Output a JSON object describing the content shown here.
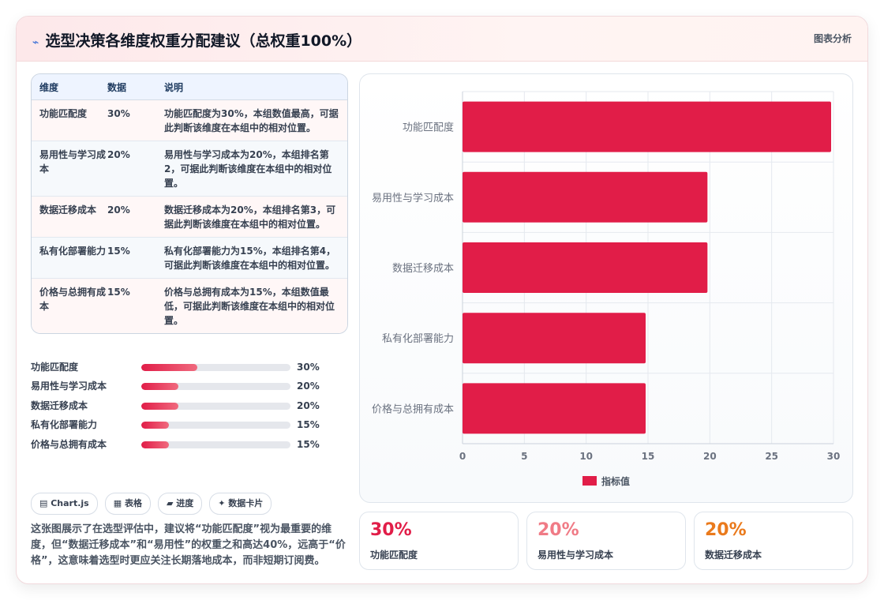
{
  "header": {
    "icon": "chart-line-icon",
    "title": "选型决策各维度权重分配建议（总权重100%）",
    "tag": "图表分析"
  },
  "table": {
    "columns": [
      "维度",
      "数据",
      "说明"
    ],
    "rows": [
      {
        "dim": "功能匹配度",
        "value": "30%",
        "note": "功能匹配度为30%，本组数值最高，可据此判断该维度在本组中的相对位置。"
      },
      {
        "dim": "易用性与学习成本",
        "value": "20%",
        "note": "易用性与学习成本为20%，本组排名第2，可据此判断该维度在本组中的相对位置。"
      },
      {
        "dim": "数据迁移成本",
        "value": "20%",
        "note": "数据迁移成本为20%，本组排名第3，可据此判断该维度在本组中的相对位置。"
      },
      {
        "dim": "私有化部署能力",
        "value": "15%",
        "note": "私有化部署能力为15%，本组排名第4，可据此判断该维度在本组中的相对位置。"
      },
      {
        "dim": "价格与总拥有成本",
        "value": "15%",
        "note": "价格与总拥有成本为15%，本组数值最低，可据此判断该维度在本组中的相对位置。"
      }
    ]
  },
  "progress": [
    {
      "label": "功能匹配度",
      "value": 30,
      "text": "30%"
    },
    {
      "label": "易用性与学习成本",
      "value": 20,
      "text": "20%"
    },
    {
      "label": "数据迁移成本",
      "value": 20,
      "text": "20%"
    },
    {
      "label": "私有化部署能力",
      "value": 15,
      "text": "15%"
    },
    {
      "label": "价格与总拥有成本",
      "value": 15,
      "text": "15%"
    }
  ],
  "chips": [
    {
      "icon": "window-icon",
      "label": "▤ Chart.js"
    },
    {
      "icon": "table-icon",
      "label": "▦ 表格"
    },
    {
      "icon": "progress-icon",
      "label": "▰ 进度"
    },
    {
      "icon": "sparkle-icon",
      "label": "✦ 数据卡片"
    }
  ],
  "description": "这张图展示了在选型评估中，建议将“功能匹配度”视为最重要的维度，但“数据迁移成本”和“易用性”的权重之和高达40%，远高于“价格”，这意味着选型时更应关注长期落地成本，而非短期订阅费。",
  "kpis": [
    {
      "value": "30%",
      "label": "功能匹配度",
      "color": "#e11d48"
    },
    {
      "value": "20%",
      "label": "易用性与学习成本",
      "color": "#f07b86"
    },
    {
      "value": "20%",
      "label": "数据迁移成本",
      "color": "#ea7a1c"
    }
  ],
  "chart_data": {
    "type": "bar",
    "orientation": "horizontal",
    "categories": [
      "功能匹配度",
      "易用性与学习成本",
      "数据迁移成本",
      "私有化部署能力",
      "价格与总拥有成本"
    ],
    "series": [
      {
        "name": "指标值",
        "values": [
          30,
          20,
          20,
          15,
          15
        ]
      }
    ],
    "xlim": [
      0,
      30
    ],
    "xticks": [
      "0",
      "5",
      "10",
      "15",
      "20",
      "25",
      "30"
    ],
    "grid": true,
    "legend": "bottom",
    "bar_color": "#e11d48"
  }
}
